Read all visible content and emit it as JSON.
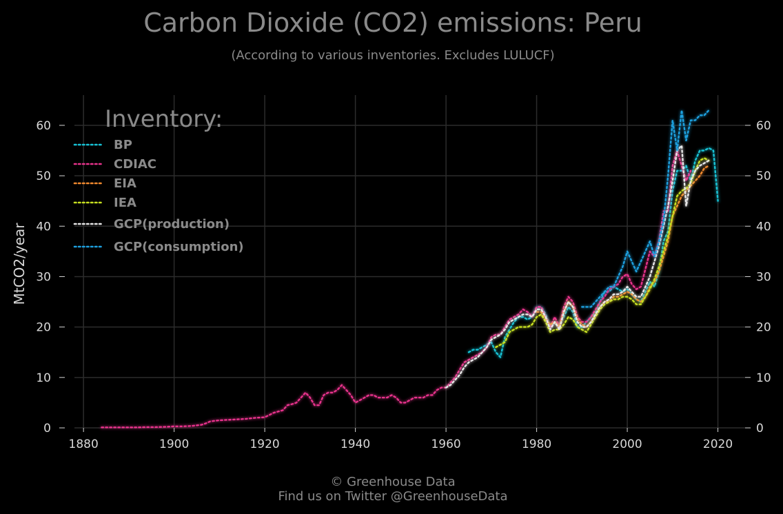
{
  "chart_data": {
    "type": "line",
    "title": "Carbon Dioxide (CO2) emissions: Peru",
    "subtitle": "(According to various inventories. Excludes LULUCF)",
    "ylabel": "MtCO2/year",
    "xlabel": "",
    "xlim": [
      1878,
      2026
    ],
    "ylim": [
      0,
      66
    ],
    "xticks": [
      1880,
      1900,
      1920,
      1940,
      1960,
      1980,
      2000,
      2020
    ],
    "yticks": [
      0,
      10,
      20,
      30,
      40,
      50,
      60
    ],
    "grid": true,
    "legend_title": "Inventory:",
    "legend_position": "top-left",
    "series": [
      {
        "name": "BP",
        "color": "#17c3d6",
        "x": [
          1965,
          1966,
          1967,
          1968,
          1969,
          1970,
          1971,
          1972,
          1973,
          1974,
          1975,
          1976,
          1977,
          1978,
          1979,
          1980,
          1981,
          1982,
          1983,
          1984,
          1985,
          1986,
          1987,
          1988,
          1989,
          1990,
          1991,
          1992,
          1993,
          1994,
          1995,
          1996,
          1997,
          1998,
          1999,
          2000,
          2001,
          2002,
          2003,
          2004,
          2005,
          2006,
          2007,
          2008,
          2009,
          2010,
          2011,
          2012,
          2013,
          2014,
          2015,
          2016,
          2017,
          2018,
          2019,
          2020
        ],
        "y": [
          15,
          15.5,
          15.5,
          16,
          16.5,
          17,
          15,
          14,
          18,
          19.5,
          21,
          22,
          22,
          21.5,
          22,
          24,
          24,
          22.5,
          20,
          21,
          20.5,
          22,
          24,
          23,
          20,
          20,
          21,
          22,
          23,
          25,
          27,
          27,
          28,
          27.5,
          27,
          27.5,
          26.5,
          25.5,
          25,
          27,
          29,
          28,
          31,
          37,
          39,
          47,
          51,
          51,
          52,
          49,
          53,
          55,
          55,
          55.5,
          55,
          45
        ]
      },
      {
        "name": "CDIAC",
        "color": "#e8338c",
        "x": [
          1884,
          1886,
          1888,
          1890,
          1892,
          1894,
          1896,
          1898,
          1900,
          1902,
          1904,
          1906,
          1907,
          1908,
          1910,
          1912,
          1914,
          1916,
          1918,
          1920,
          1922,
          1924,
          1925,
          1926,
          1927,
          1928,
          1929,
          1930,
          1931,
          1932,
          1933,
          1934,
          1935,
          1936,
          1937,
          1938,
          1939,
          1940,
          1941,
          1942,
          1943,
          1944,
          1945,
          1946,
          1947,
          1948,
          1949,
          1950,
          1951,
          1952,
          1953,
          1954,
          1955,
          1956,
          1957,
          1958,
          1959,
          1960,
          1961,
          1962,
          1963,
          1964,
          1965,
          1966,
          1967,
          1968,
          1969,
          1970,
          1971,
          1972,
          1973,
          1974,
          1975,
          1976,
          1977,
          1978,
          1979,
          1980,
          1981,
          1982,
          1983,
          1984,
          1985,
          1986,
          1987,
          1988,
          1989,
          1990,
          1991,
          1992,
          1993,
          1994,
          1995,
          1996,
          1997,
          1998,
          1999,
          2000,
          2001,
          2002,
          2003,
          2004,
          2005,
          2006,
          2007,
          2008,
          2009,
          2010,
          2011,
          2012,
          2013,
          2014
        ],
        "y": [
          0.1,
          0.1,
          0.1,
          0.1,
          0.1,
          0.15,
          0.15,
          0.2,
          0.3,
          0.3,
          0.4,
          0.6,
          0.9,
          1.3,
          1.5,
          1.6,
          1.7,
          1.8,
          2.0,
          2.1,
          3.0,
          3.5,
          4.5,
          4.7,
          5.0,
          6.0,
          7.0,
          6.0,
          4.5,
          4.5,
          6.5,
          7.0,
          7.0,
          7.5,
          8.5,
          7.5,
          6.5,
          5.0,
          5.5,
          6.0,
          6.5,
          6.5,
          6.0,
          6.0,
          6.0,
          6.5,
          6.0,
          5.0,
          5.0,
          5.5,
          6.0,
          6.0,
          6.0,
          6.5,
          6.5,
          7.5,
          8.0,
          8.0,
          9.0,
          10.0,
          11.5,
          13.0,
          13.5,
          14.0,
          14.5,
          15.0,
          16.0,
          18.0,
          18.5,
          18.5,
          20.0,
          21.5,
          22.0,
          22.5,
          23.5,
          23.0,
          22.0,
          24.0,
          24.0,
          22.0,
          20.0,
          22.0,
          20.0,
          24.0,
          26.0,
          25.0,
          22.0,
          21.0,
          21.0,
          22.0,
          23.5,
          25.0,
          26.0,
          27.5,
          28.0,
          28.5,
          30.0,
          30.5,
          28.5,
          27.5,
          28.0,
          31.5,
          35.0,
          34.0,
          37.0,
          43.0,
          43.0,
          52.0,
          55.0,
          52.0,
          49.0,
          51.0
        ]
      },
      {
        "name": "EIA",
        "color": "#f28a2e",
        "x": [
          1980,
          1981,
          1982,
          1983,
          1984,
          1985,
          1986,
          1987,
          1988,
          1989,
          1990,
          1991,
          1992,
          1993,
          1994,
          1995,
          1996,
          1997,
          1998,
          1999,
          2000,
          2001,
          2002,
          2003,
          2004,
          2005,
          2006,
          2007,
          2008,
          2009,
          2010,
          2011,
          2012,
          2013,
          2014,
          2015,
          2016,
          2017,
          2018
        ],
        "y": [
          23,
          23,
          21.5,
          20.5,
          21,
          20,
          23,
          25,
          24,
          21.5,
          20.5,
          20,
          21,
          22.5,
          24,
          25,
          25,
          26,
          26,
          26.5,
          27,
          26.5,
          25.5,
          25,
          26,
          28,
          29,
          31,
          34,
          37,
          42,
          44,
          46,
          47,
          48,
          49,
          50,
          51.5,
          52
        ]
      },
      {
        "name": "IEA",
        "color": "#c7e020",
        "x": [
          1971,
          1972,
          1973,
          1974,
          1975,
          1976,
          1977,
          1978,
          1979,
          1980,
          1981,
          1982,
          1983,
          1984,
          1985,
          1986,
          1987,
          1988,
          1989,
          1990,
          1991,
          1992,
          1993,
          1994,
          1995,
          1996,
          1997,
          1998,
          1999,
          2000,
          2001,
          2002,
          2003,
          2004,
          2005,
          2006,
          2007,
          2008,
          2009,
          2010,
          2011,
          2012,
          2013,
          2014,
          2015,
          2016,
          2017,
          2018
        ],
        "y": [
          16,
          16.5,
          17,
          19,
          19.5,
          20,
          20,
          20,
          20.5,
          22,
          22.5,
          21,
          19,
          19.5,
          19.5,
          20.5,
          22,
          21.5,
          20,
          19.5,
          19,
          20.5,
          22,
          23.5,
          24.5,
          25,
          25.5,
          25.5,
          26,
          26,
          25.5,
          24.5,
          24.5,
          26,
          27.5,
          29.5,
          32,
          35,
          38,
          42,
          46,
          47,
          47.5,
          48.5,
          51,
          53,
          53.5,
          53
        ]
      },
      {
        "name": "GCP(production)",
        "color": "#e8e8e8",
        "x": [
          1960,
          1961,
          1962,
          1963,
          1964,
          1965,
          1966,
          1967,
          1968,
          1969,
          1970,
          1971,
          1972,
          1973,
          1974,
          1975,
          1976,
          1977,
          1978,
          1979,
          1980,
          1981,
          1982,
          1983,
          1984,
          1985,
          1986,
          1987,
          1988,
          1989,
          1990,
          1991,
          1992,
          1993,
          1994,
          1995,
          1996,
          1997,
          1998,
          1999,
          2000,
          2001,
          2002,
          2003,
          2004,
          2005,
          2006,
          2007,
          2008,
          2009,
          2010,
          2011,
          2012,
          2013,
          2014,
          2015,
          2016,
          2017,
          2018
        ],
        "y": [
          8,
          8.5,
          9.5,
          10.5,
          12,
          13,
          13.5,
          14,
          15,
          16,
          17.5,
          18,
          18.5,
          19.5,
          21,
          21.5,
          22,
          22.5,
          22.5,
          22,
          23.5,
          23.5,
          22,
          19.5,
          21,
          19.5,
          23,
          25,
          24,
          21,
          20,
          20,
          21,
          22.5,
          24,
          25,
          25.5,
          26.5,
          26.5,
          27,
          28,
          27,
          26,
          26,
          28,
          30,
          33,
          36,
          40,
          44,
          49,
          55,
          56,
          44,
          49,
          51,
          52,
          52.5,
          53
        ]
      },
      {
        "name": "GCP(consumption)",
        "color": "#1ea1e0",
        "x": [
          1990,
          1991,
          1992,
          1993,
          1994,
          1995,
          1996,
          1997,
          1998,
          1999,
          2000,
          2001,
          2002,
          2003,
          2004,
          2005,
          2006,
          2007,
          2008,
          2009,
          2010,
          2011,
          2012,
          2013,
          2014,
          2015,
          2016,
          2017,
          2018
        ],
        "y": [
          24,
          24,
          24,
          25,
          26,
          27,
          28,
          28,
          30,
          32,
          35,
          33,
          31,
          33,
          35,
          37,
          34,
          37,
          41,
          50,
          61,
          55,
          63,
          57,
          61,
          61,
          62,
          62,
          63
        ]
      }
    ]
  },
  "footer": {
    "copyright": "© Greenhouse Data",
    "twitter": "Find us on Twitter @GreenhouseData"
  },
  "colors": {
    "background": "#000000",
    "grid": "#2c2c2c",
    "text": "#8a8a8a",
    "ticks": "#d8d8d8"
  }
}
